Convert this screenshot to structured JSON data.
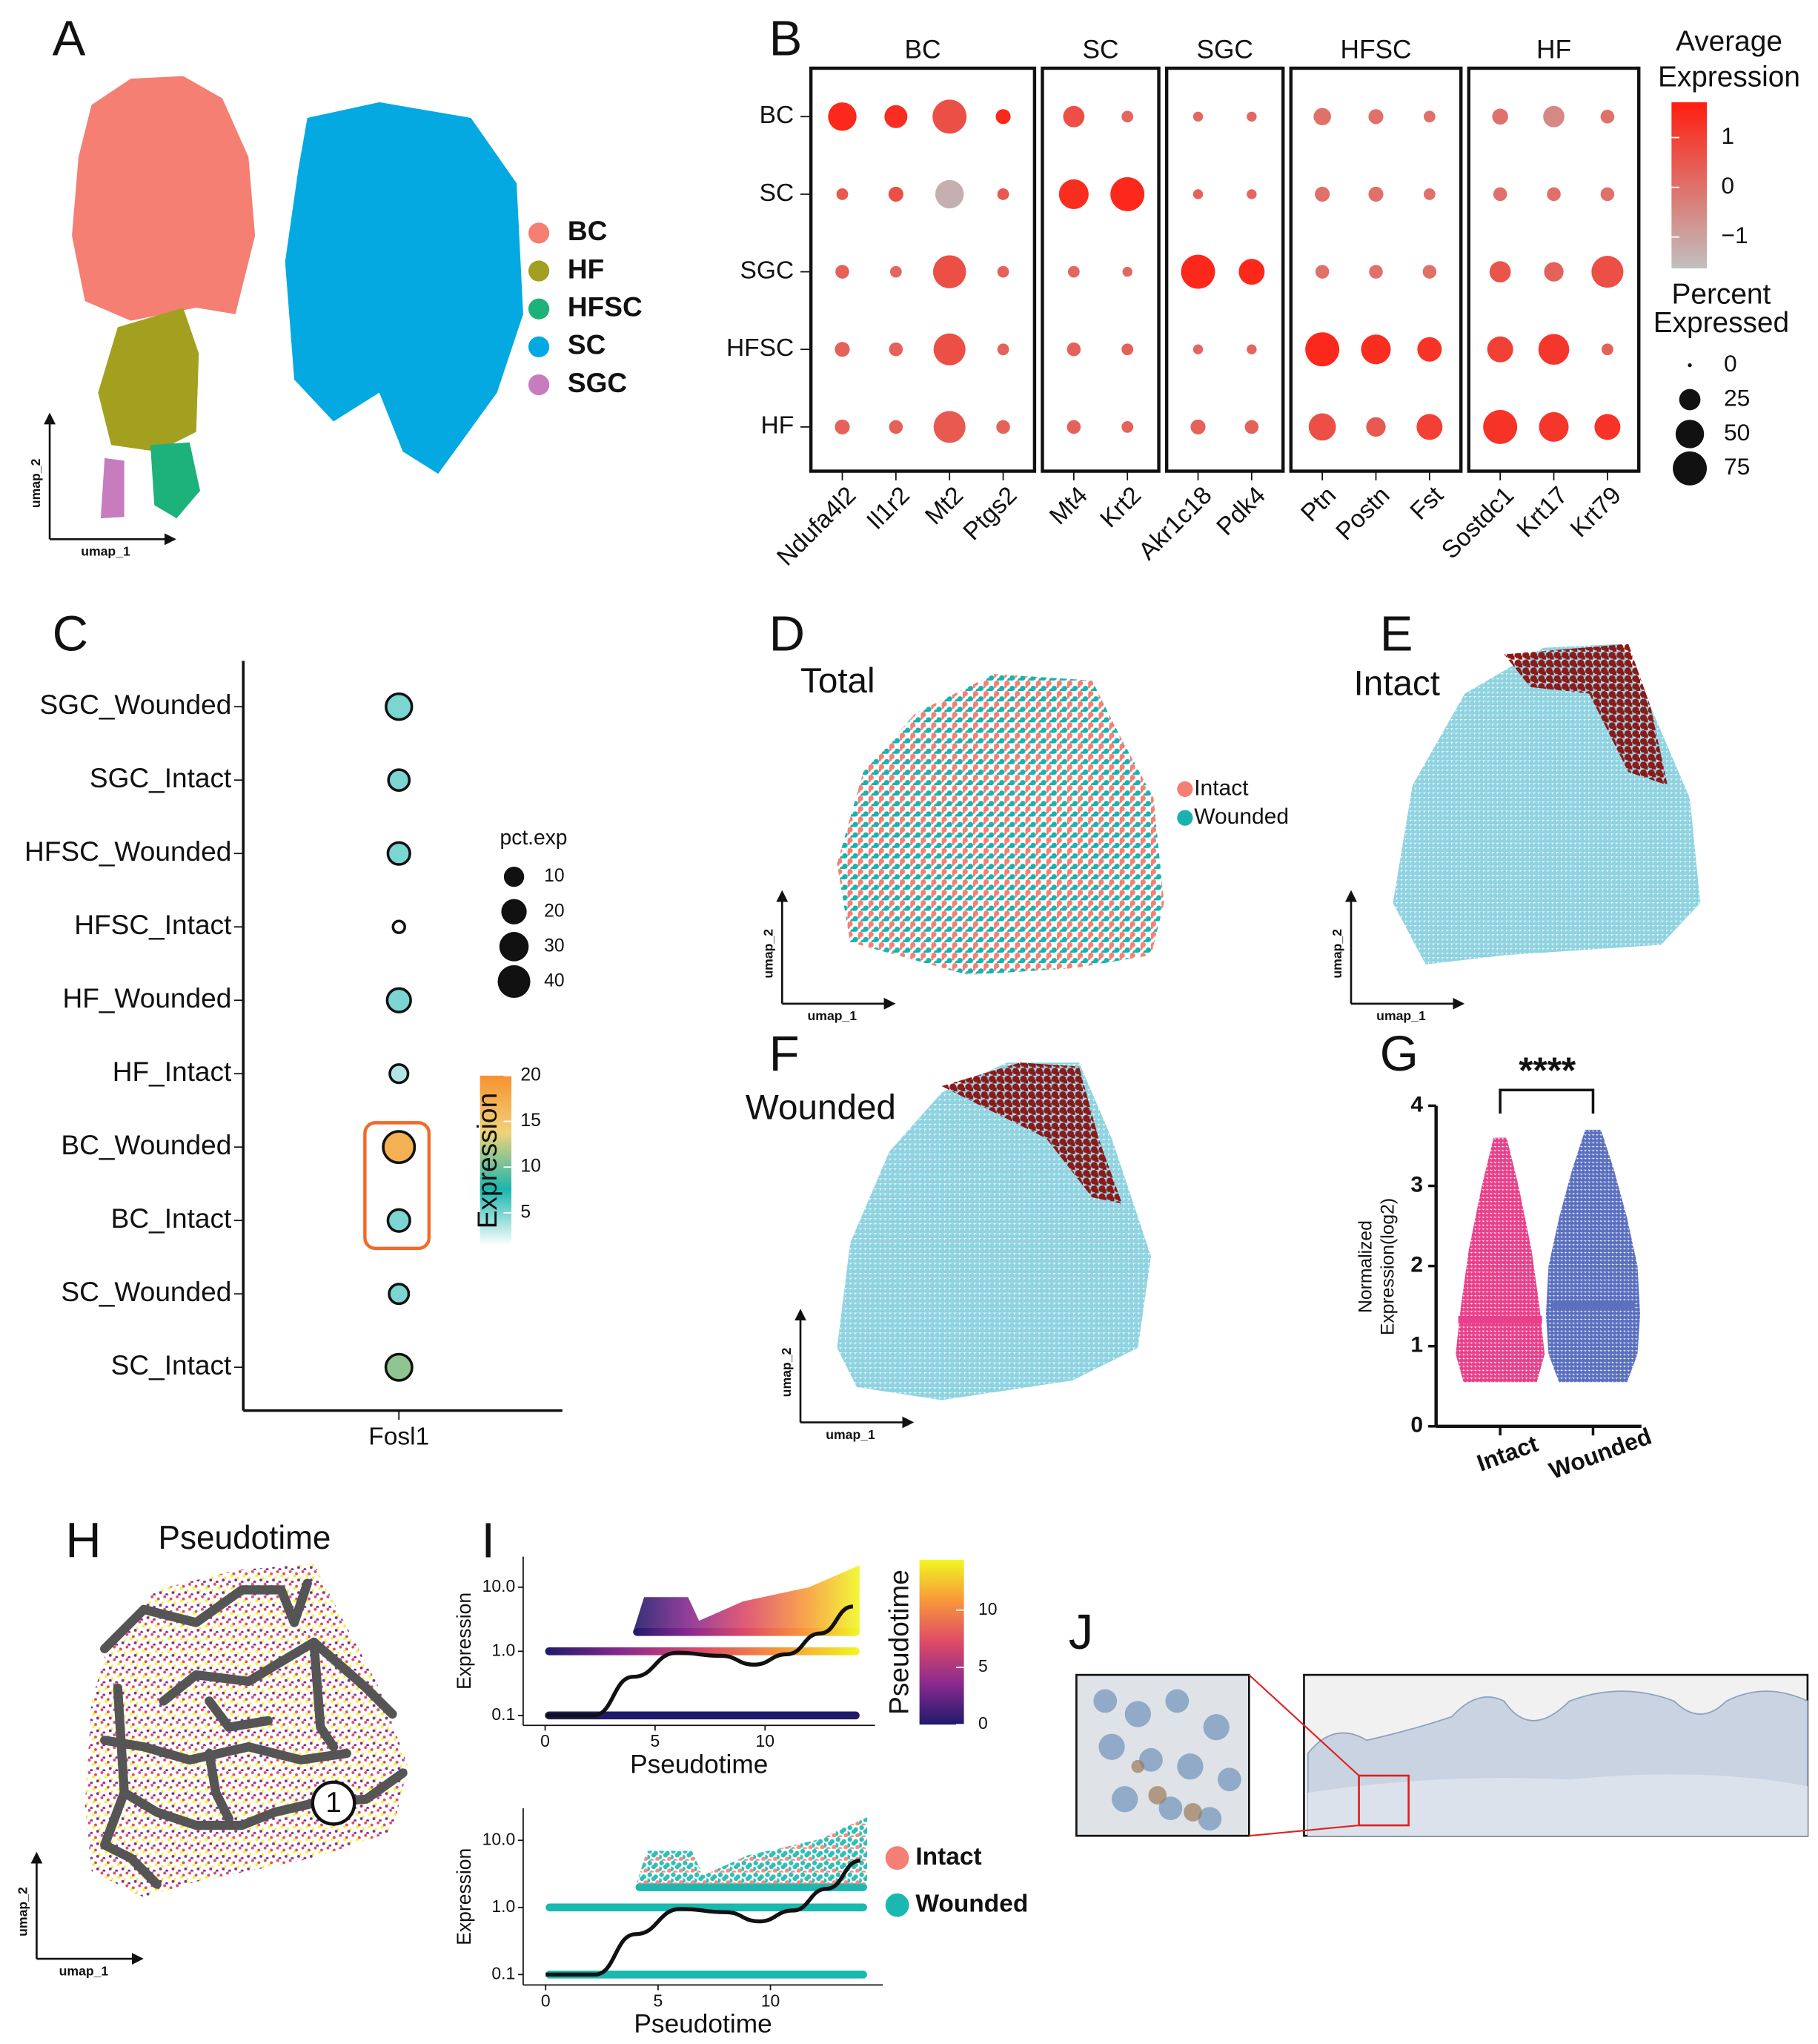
{
  "panel_labels": [
    "A",
    "B",
    "C",
    "D",
    "E",
    "F",
    "G",
    "H",
    "I",
    "J"
  ],
  "chart_data": [
    {
      "type": "umap",
      "x_label": "umap_1",
      "y_label": "umap_2",
      "series": [
        {
          "name": "BC",
          "color": "#f47f72"
        },
        {
          "name": "HF",
          "color": "#a3a020"
        },
        {
          "name": "HFSC",
          "color": "#1db27a"
        },
        {
          "name": "SC",
          "color": "#03a9e0"
        },
        {
          "name": "SGC",
          "color": "#c77cbf"
        }
      ]
    },
    {
      "type": "dotplot",
      "groups": [
        {
          "name": "BC",
          "genes": [
            "Ndufa4l2",
            "Il1r2",
            "Mt2",
            "Ptgs2"
          ]
        },
        {
          "name": "SC",
          "genes": [
            "Mt4",
            "Krt2"
          ]
        },
        {
          "name": "SGC",
          "genes": [
            "Akr1c18",
            "Pdk4"
          ]
        },
        {
          "name": "HFSC",
          "genes": [
            "Ptn",
            "Postn",
            "Fst"
          ]
        },
        {
          "name": "HF",
          "genes": [
            "Sostdc1",
            "Krt17",
            "Krt79"
          ]
        }
      ],
      "rows": [
        "BC",
        "SC",
        "SGC",
        "HFSC",
        "HF"
      ],
      "pct": [
        [
          50,
          30,
          75,
          10,
          25,
          5,
          3,
          3,
          15,
          10,
          5,
          12,
          25,
          8
        ],
        [
          5,
          10,
          50,
          5,
          55,
          75,
          3,
          3,
          10,
          10,
          5,
          8,
          8,
          8
        ],
        [
          8,
          5,
          70,
          5,
          5,
          3,
          75,
          40,
          8,
          8,
          8,
          25,
          20,
          65
        ],
        [
          10,
          8,
          65,
          5,
          8,
          5,
          3,
          3,
          75,
          55,
          35,
          40,
          60,
          5
        ],
        [
          10,
          8,
          65,
          8,
          8,
          5,
          10,
          8,
          45,
          20,
          40,
          75,
          55,
          40
        ]
      ],
      "expression": [
        [
          1.5,
          1.4,
          0.7,
          1.5,
          0.7,
          0.2,
          0.2,
          0.2,
          0,
          0,
          0,
          0,
          -0.5,
          0
        ],
        [
          0.5,
          0.7,
          -1.3,
          0.5,
          1.4,
          1.5,
          0.3,
          0.2,
          0,
          0,
          0,
          0,
          0,
          0
        ],
        [
          0.3,
          0.2,
          0.7,
          0.3,
          0.2,
          0.2,
          1.5,
          1.5,
          0,
          0,
          0,
          0.6,
          0.3,
          0.7
        ],
        [
          0.3,
          0.3,
          0.7,
          0.3,
          0.3,
          0.3,
          0.2,
          0.2,
          1.5,
          1.4,
          1.3,
          1.0,
          1.2,
          0.3
        ],
        [
          0.3,
          0.3,
          0.5,
          0.3,
          0.3,
          0.3,
          0.3,
          0.3,
          0.7,
          0.5,
          1.0,
          1.3,
          1.2,
          1.3
        ]
      ],
      "color_title": [
        "Average",
        "Expression"
      ],
      "color_lim": [
        -1.63,
        1.71
      ],
      "colors": [
        "#c0c0c0",
        "#ff1e10"
      ],
      "color_ticks": [
        1,
        0,
        {
          "value": -1,
          "label": "−1"
        }
      ],
      "size_title": [
        "Percent",
        "Expressed"
      ],
      "size_ticks": [
        0,
        25,
        50,
        75
      ]
    },
    {
      "type": "dotplot_single",
      "gene": "Fosl1",
      "categories": [
        "SGC_Wounded",
        "SGC_Intact",
        "HFSC_Wounded",
        "HFSC_Intact",
        "HF_Wounded",
        "HF_Intact",
        "BC_Wounded",
        "BC_Intact",
        "SC_Wounded",
        "SC_Intact"
      ],
      "pct": [
        21,
        11,
        13,
        1,
        16,
        7,
        36,
        13,
        9,
        22
      ],
      "expression": [
        5,
        5,
        5,
        1.5,
        5,
        3.5,
        17,
        5,
        5,
        11
      ],
      "size_title": "pct.exp",
      "size_ticks": [
        10,
        20,
        30,
        40
      ],
      "color_title": "Expression",
      "color_lim": [
        1.4,
        20
      ],
      "color_ticks": [
        5,
        10,
        15,
        20
      ],
      "colors": [
        "#ffffff",
        "#1bb6ae",
        "#f0d27a",
        "#f7922f"
      ]
    },
    {
      "type": "umap",
      "title": "Total",
      "x_label": "umap_1",
      "y_label": "umap_2",
      "series": [
        {
          "name": "Intact",
          "color": "#f47f72"
        },
        {
          "name": "Wounded",
          "color": "#19b2ae"
        }
      ]
    },
    {
      "type": "umap",
      "title": "Intact",
      "x_label": "umap_1",
      "y_label": "umap_2",
      "colors": [
        "#8fd3e1",
        "#8b1a1a"
      ]
    },
    {
      "type": "umap",
      "title": "Wounded",
      "x_label": "umap_1",
      "y_label": "umap_2",
      "colors": [
        "#8fd3e1",
        "#8b1a1a"
      ]
    },
    {
      "type": "beeswarm",
      "categories": [
        "Intact",
        "Wounded"
      ],
      "medians": [
        1.33,
        1.52
      ],
      "colors": [
        "#e8408a",
        "#5b6fbf"
      ],
      "ylim": [
        0,
        4
      ],
      "yticks": [
        0,
        1,
        2,
        3,
        4
      ],
      "y_label": [
        "Normalized",
        "Expression(log2)"
      ],
      "annotation": "****"
    },
    {
      "type": "trajectory",
      "title": "Pseudotime",
      "annotation": "1",
      "x_label": "umap_1",
      "y_label": "umap_2"
    },
    {
      "type": "pseudotime",
      "x_label": "Pseudotime",
      "y_label": "Expression",
      "xlim": [
        -1,
        15
      ],
      "xticks": [
        0,
        5,
        10
      ],
      "log_y": true,
      "ylim": [
        0.07,
        30
      ],
      "yticks": [
        0.1,
        {
          "value": 1,
          "label": "1.0"
        },
        {
          "value": 10,
          "label": "10.0"
        }
      ],
      "fit": {
        "x": [
          0,
          2.2,
          4,
          6,
          8,
          9.5,
          11,
          12.5,
          14
        ],
        "values": [
          0.1,
          0.1,
          0.4,
          0.95,
          0.85,
          0.62,
          0.9,
          1.9,
          5
        ]
      },
      "color_title": "Pseudotime",
      "color_lim": [
        0,
        14.4
      ],
      "color_ticks": [
        0,
        5,
        10
      ],
      "colors": [
        "#1f1a6b",
        "#8a2a8f",
        "#dd4b67",
        "#f8963b",
        "#f1f722"
      ]
    },
    {
      "type": "pseudotime",
      "x_label": "Pseudotime",
      "y_label": "Expression",
      "xlim": [
        -1,
        15
      ],
      "xticks": [
        0,
        5,
        10
      ],
      "log_y": true,
      "ylim": [
        0.07,
        30
      ],
      "yticks": [
        0.1,
        {
          "value": 1,
          "label": "1.0"
        },
        {
          "value": 10,
          "label": "10.0"
        }
      ],
      "fit": {
        "x": [
          0,
          2.2,
          4,
          6,
          8,
          9.5,
          11,
          12.5,
          14
        ],
        "values": [
          0.1,
          0.1,
          0.4,
          0.95,
          0.85,
          0.62,
          0.9,
          1.9,
          5
        ]
      },
      "series": [
        {
          "name": "Intact",
          "color": "#f47f72"
        },
        {
          "name": "Wounded",
          "color": "#19b8b0"
        }
      ]
    }
  ]
}
